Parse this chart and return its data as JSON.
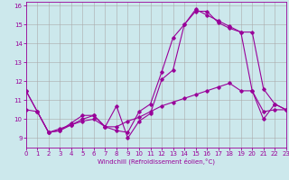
{
  "xlabel": "Windchill (Refroidissement éolien,°C)",
  "bg_color": "#cce8ec",
  "line_color": "#990099",
  "grid_color": "#aaaaaa",
  "xlim": [
    0,
    23
  ],
  "ylim": [
    8.5,
    16.2
  ],
  "xticks": [
    0,
    1,
    2,
    3,
    4,
    5,
    6,
    7,
    8,
    9,
    10,
    11,
    12,
    13,
    14,
    15,
    16,
    17,
    18,
    19,
    20,
    21,
    22,
    23
  ],
  "yticks": [
    9,
    10,
    11,
    12,
    13,
    14,
    15,
    16
  ],
  "series1_x": [
    0,
    1,
    2,
    3,
    4,
    5,
    6,
    7,
    8,
    9,
    10,
    11,
    12,
    13,
    14,
    15,
    16,
    17,
    18,
    19,
    20,
    21,
    22,
    23
  ],
  "series1_y": [
    11.5,
    10.4,
    9.3,
    9.4,
    9.8,
    10.2,
    10.2,
    9.6,
    9.4,
    9.3,
    10.4,
    10.8,
    12.5,
    14.3,
    15.0,
    15.7,
    15.7,
    15.1,
    14.8,
    14.6,
    14.6,
    11.6,
    10.8,
    10.5
  ],
  "series2_x": [
    0,
    1,
    2,
    3,
    4,
    5,
    6,
    7,
    8,
    9,
    10,
    11,
    12,
    13,
    14,
    15,
    16,
    17,
    18,
    19,
    20,
    21,
    22,
    23
  ],
  "series2_y": [
    11.5,
    10.4,
    9.3,
    9.5,
    9.7,
    10.0,
    10.2,
    9.6,
    10.7,
    9.0,
    9.9,
    10.3,
    12.1,
    12.6,
    15.0,
    15.8,
    15.5,
    15.2,
    14.9,
    14.6,
    11.5,
    10.0,
    10.8,
    10.5
  ],
  "series3_x": [
    0,
    1,
    2,
    3,
    4,
    5,
    6,
    7,
    8,
    9,
    10,
    11,
    12,
    13,
    14,
    15,
    16,
    17,
    18,
    19,
    20,
    21,
    22,
    23
  ],
  "series3_y": [
    10.5,
    10.4,
    9.3,
    9.4,
    9.7,
    9.9,
    10.0,
    9.6,
    9.6,
    9.9,
    10.1,
    10.4,
    10.7,
    10.9,
    11.1,
    11.3,
    11.5,
    11.7,
    11.9,
    11.5,
    11.5,
    10.4,
    10.5,
    10.5
  ]
}
